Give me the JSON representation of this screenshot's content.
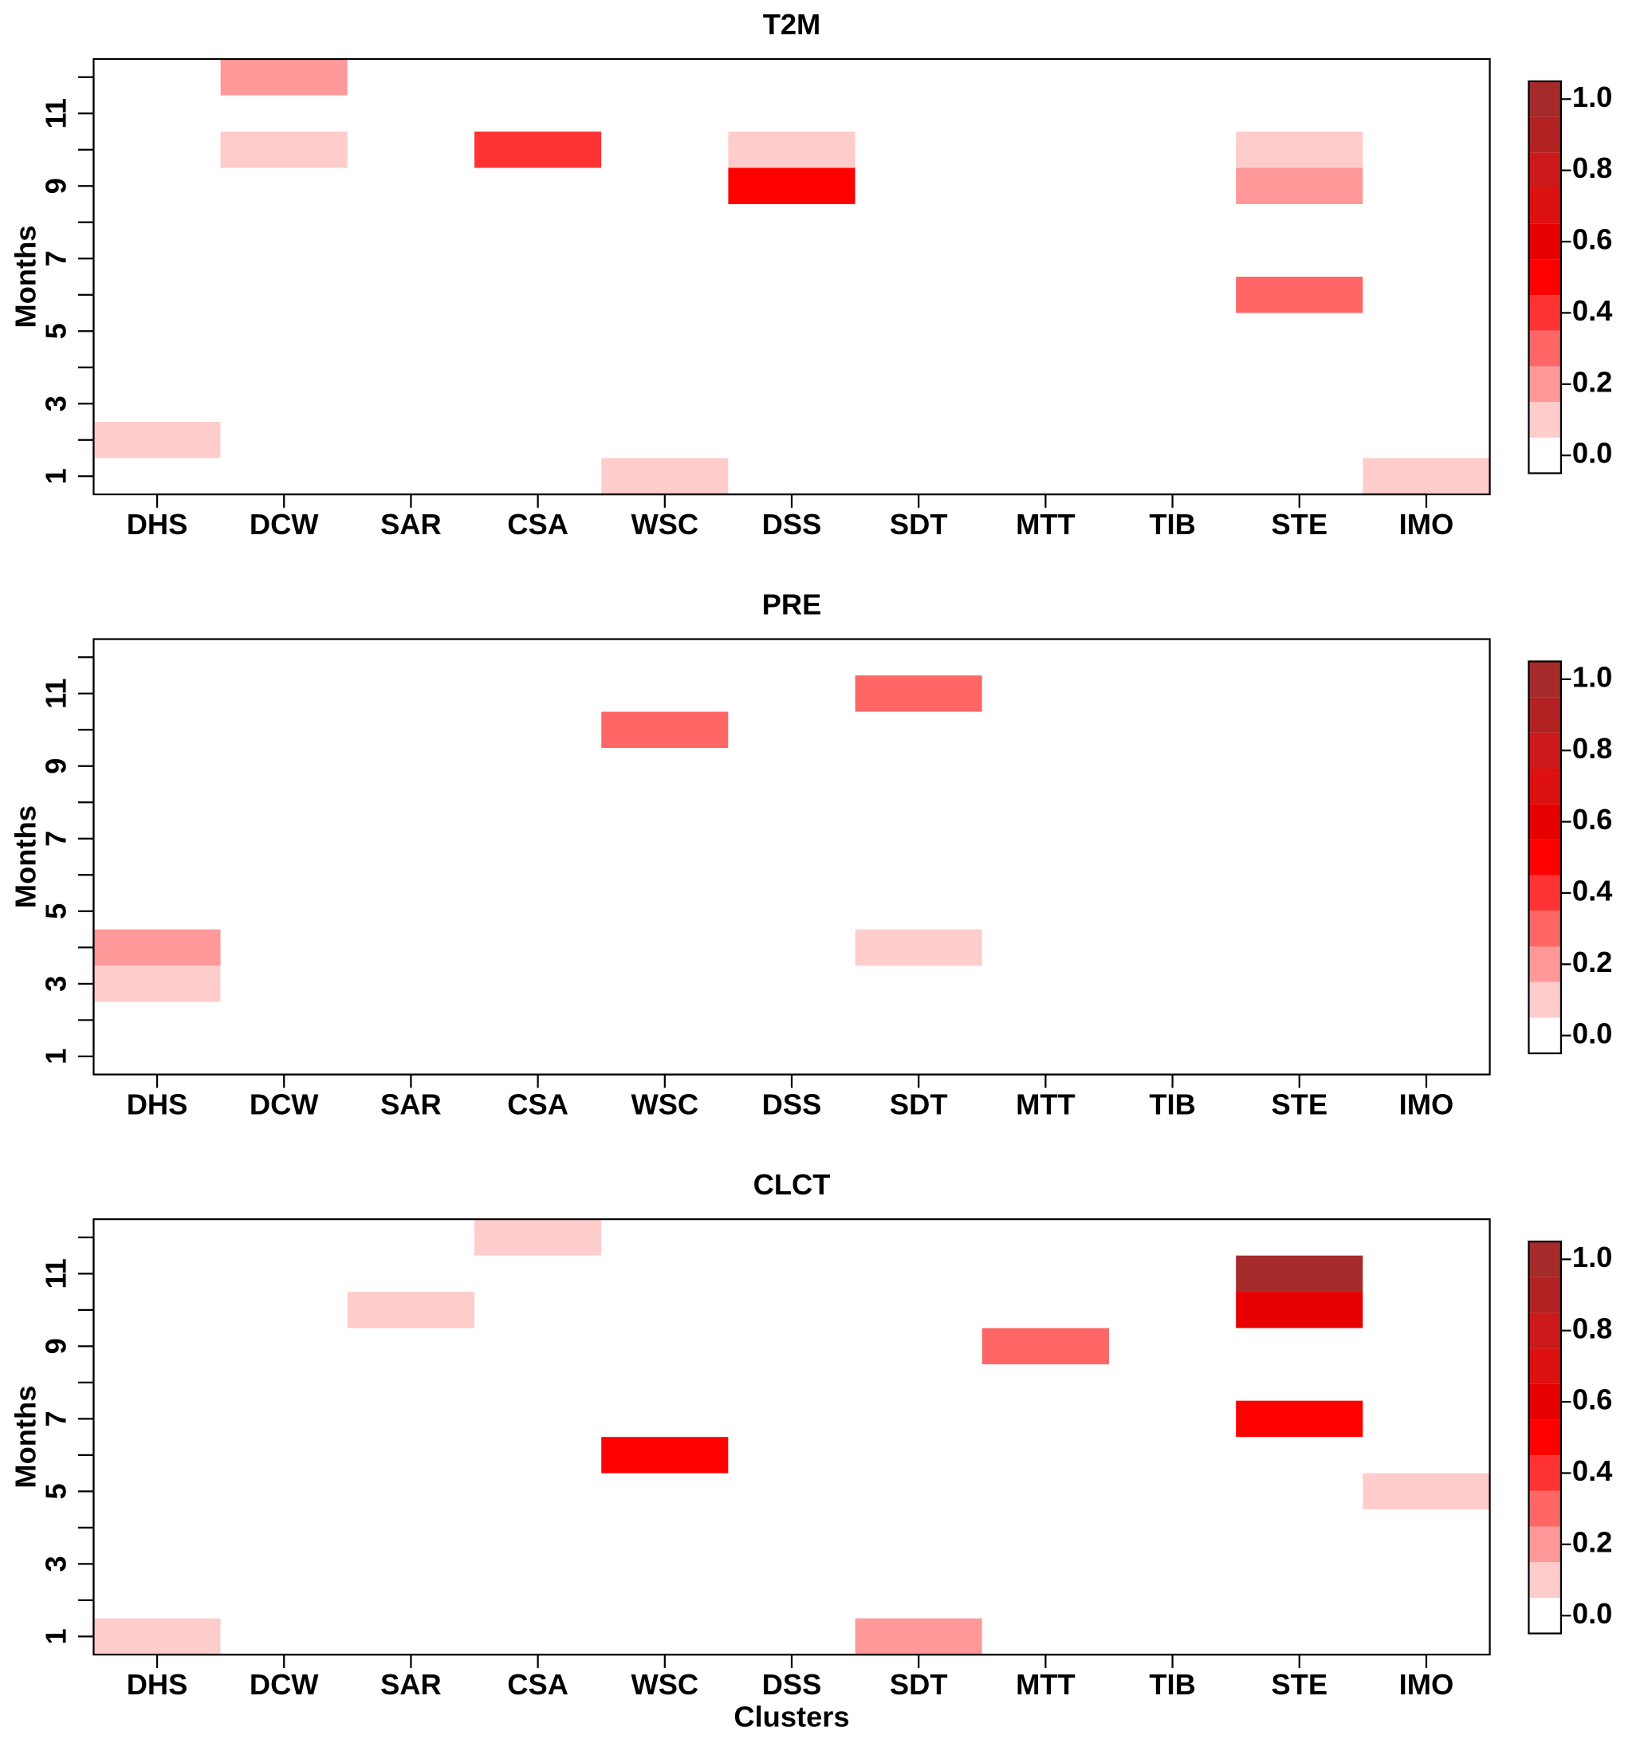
{
  "chart_data": [
    {
      "type": "heatmap",
      "title": "T2M",
      "ylabel": "Months",
      "categories": [
        "DHS",
        "DCW",
        "SAR",
        "CSA",
        "WSC",
        "DSS",
        "SDT",
        "MTT",
        "TIB",
        "STE",
        "IMO"
      ],
      "y": [
        1,
        2,
        3,
        4,
        5,
        6,
        7,
        8,
        9,
        10,
        11,
        12
      ],
      "values": [
        [
          0,
          0,
          0,
          0,
          0.1,
          0,
          0,
          0,
          0,
          0,
          0.1
        ],
        [
          0.1,
          0,
          0,
          0,
          0,
          0,
          0,
          0,
          0,
          0,
          0
        ],
        [
          0,
          0,
          0,
          0,
          0,
          0,
          0,
          0,
          0,
          0,
          0
        ],
        [
          0,
          0,
          0,
          0,
          0,
          0,
          0,
          0,
          0,
          0,
          0
        ],
        [
          0,
          0,
          0,
          0,
          0,
          0,
          0,
          0,
          0,
          0,
          0
        ],
        [
          0,
          0,
          0,
          0,
          0,
          0,
          0,
          0,
          0,
          0.3,
          0
        ],
        [
          0,
          0,
          0,
          0,
          0,
          0,
          0,
          0,
          0,
          0,
          0
        ],
        [
          0,
          0,
          0,
          0,
          0,
          0,
          0,
          0,
          0,
          0,
          0
        ],
        [
          0,
          0,
          0,
          0,
          0,
          0.5,
          0,
          0,
          0,
          0.2,
          0
        ],
        [
          0,
          0.1,
          0,
          0.4,
          0,
          0.1,
          0,
          0,
          0,
          0.1,
          0
        ],
        [
          0,
          0,
          0,
          0,
          0,
          0,
          0,
          0,
          0,
          0,
          0
        ],
        [
          0,
          0.2,
          0,
          0,
          0,
          0,
          0,
          0,
          0,
          0,
          0
        ]
      ],
      "xlim": [
        0.5,
        11.5
      ],
      "ylim": [
        0.5,
        12.5
      ],
      "yticks": [
        1,
        3,
        5,
        7,
        9,
        11
      ],
      "yminor_ticks": [
        2,
        4,
        6,
        8,
        10,
        12
      ],
      "zlim": [
        -0.05,
        1.05
      ],
      "colors": [
        "#FFFFFF",
        "#FFCCCC",
        "#FF9999",
        "#FF6666",
        "#FF3333",
        "#FF0000",
        "#E60000",
        "#DD1111",
        "#CC1A1A",
        "#B22222",
        "#A52A2A"
      ],
      "zticks": [
        {
          "value": 0,
          "label": "0.0"
        },
        {
          "value": 0.2,
          "label": "0.2"
        },
        {
          "value": 0.4,
          "label": "0.4"
        },
        {
          "value": 0.6,
          "label": "0.6"
        },
        {
          "value": 0.8,
          "label": "0.8"
        },
        {
          "value": 1,
          "label": "1.0"
        }
      ]
    },
    {
      "type": "heatmap",
      "title": "PRE",
      "ylabel": "Months",
      "categories": [
        "DHS",
        "DCW",
        "SAR",
        "CSA",
        "WSC",
        "DSS",
        "SDT",
        "MTT",
        "TIB",
        "STE",
        "IMO"
      ],
      "y": [
        1,
        2,
        3,
        4,
        5,
        6,
        7,
        8,
        9,
        10,
        11,
        12
      ],
      "values": [
        [
          0,
          0,
          0,
          0,
          0,
          0,
          0,
          0,
          0,
          0,
          0
        ],
        [
          0,
          0,
          0,
          0,
          0,
          0,
          0,
          0,
          0,
          0,
          0
        ],
        [
          0.1,
          0,
          0,
          0,
          0,
          0,
          0,
          0,
          0,
          0,
          0
        ],
        [
          0.2,
          0,
          0,
          0,
          0,
          0,
          0.1,
          0,
          0,
          0,
          0
        ],
        [
          0,
          0,
          0,
          0,
          0,
          0,
          0,
          0,
          0,
          0,
          0
        ],
        [
          0,
          0,
          0,
          0,
          0,
          0,
          0,
          0,
          0,
          0,
          0
        ],
        [
          0,
          0,
          0,
          0,
          0,
          0,
          0,
          0,
          0,
          0,
          0
        ],
        [
          0,
          0,
          0,
          0,
          0,
          0,
          0,
          0,
          0,
          0,
          0
        ],
        [
          0,
          0,
          0,
          0,
          0,
          0,
          0,
          0,
          0,
          0,
          0
        ],
        [
          0,
          0,
          0,
          0,
          0.3,
          0,
          0,
          0,
          0,
          0,
          0
        ],
        [
          0,
          0,
          0,
          0,
          0,
          0,
          0.3,
          0,
          0,
          0,
          0
        ],
        [
          0,
          0,
          0,
          0,
          0,
          0,
          0,
          0,
          0,
          0,
          0
        ]
      ],
      "xlim": [
        0.5,
        11.5
      ],
      "ylim": [
        0.5,
        12.5
      ],
      "yticks": [
        1,
        3,
        5,
        7,
        9,
        11
      ],
      "yminor_ticks": [
        2,
        4,
        6,
        8,
        10,
        12
      ],
      "zlim": [
        -0.05,
        1.05
      ],
      "colors": [
        "#FFFFFF",
        "#FFCCCC",
        "#FF9999",
        "#FF6666",
        "#FF3333",
        "#FF0000",
        "#E60000",
        "#DD1111",
        "#CC1A1A",
        "#B22222",
        "#A52A2A"
      ],
      "zticks": [
        {
          "value": 0,
          "label": "0.0"
        },
        {
          "value": 0.2,
          "label": "0.2"
        },
        {
          "value": 0.4,
          "label": "0.4"
        },
        {
          "value": 0.6,
          "label": "0.6"
        },
        {
          "value": 0.8,
          "label": "0.8"
        },
        {
          "value": 1,
          "label": "1.0"
        }
      ]
    },
    {
      "type": "heatmap",
      "title": "CLCT",
      "ylabel": "Months",
      "xlabel": "Clusters",
      "categories": [
        "DHS",
        "DCW",
        "SAR",
        "CSA",
        "WSC",
        "DSS",
        "SDT",
        "MTT",
        "TIB",
        "STE",
        "IMO"
      ],
      "y": [
        1,
        2,
        3,
        4,
        5,
        6,
        7,
        8,
        9,
        10,
        11,
        12
      ],
      "values": [
        [
          0.1,
          0,
          0,
          0,
          0,
          0,
          0.2,
          0,
          0,
          0,
          0
        ],
        [
          0,
          0,
          0,
          0,
          0,
          0,
          0,
          0,
          0,
          0,
          0
        ],
        [
          0,
          0,
          0,
          0,
          0,
          0,
          0,
          0,
          0,
          0,
          0
        ],
        [
          0,
          0,
          0,
          0,
          0,
          0,
          0,
          0,
          0,
          0,
          0
        ],
        [
          0,
          0,
          0,
          0,
          0,
          0,
          0,
          0,
          0,
          0,
          0.1
        ],
        [
          0,
          0,
          0,
          0,
          0.5,
          0,
          0,
          0,
          0,
          0,
          0
        ],
        [
          0,
          0,
          0,
          0,
          0,
          0,
          0,
          0,
          0,
          0.5,
          0
        ],
        [
          0,
          0,
          0,
          0,
          0,
          0,
          0,
          0,
          0,
          0,
          0
        ],
        [
          0,
          0,
          0,
          0,
          0,
          0,
          0,
          0.3,
          0,
          0,
          0
        ],
        [
          0,
          0,
          0.1,
          0,
          0,
          0,
          0,
          0,
          0,
          0.6,
          0
        ],
        [
          0,
          0,
          0,
          0,
          0,
          0,
          0,
          0,
          0,
          1,
          0
        ],
        [
          0,
          0,
          0,
          0.1,
          0,
          0,
          0,
          0,
          0,
          0,
          0
        ]
      ],
      "xlim": [
        0.5,
        11.5
      ],
      "ylim": [
        0.5,
        12.5
      ],
      "yticks": [
        1,
        3,
        5,
        7,
        9,
        11
      ],
      "yminor_ticks": [
        2,
        4,
        6,
        8,
        10,
        12
      ],
      "zlim": [
        -0.05,
        1.05
      ],
      "colors": [
        "#FFFFFF",
        "#FFCCCC",
        "#FF9999",
        "#FF6666",
        "#FF3333",
        "#FF0000",
        "#E60000",
        "#DD1111",
        "#CC1A1A",
        "#B22222",
        "#A52A2A"
      ],
      "zticks": [
        {
          "value": 0,
          "label": "0.0"
        },
        {
          "value": 0.2,
          "label": "0.2"
        },
        {
          "value": 0.4,
          "label": "0.4"
        },
        {
          "value": 0.6,
          "label": "0.6"
        },
        {
          "value": 0.8,
          "label": "0.8"
        },
        {
          "value": 1,
          "label": "1.0"
        }
      ]
    }
  ]
}
